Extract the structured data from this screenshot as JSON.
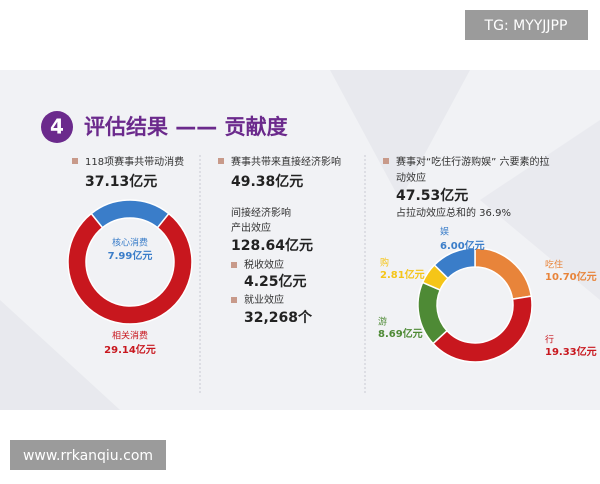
{
  "watermark": "TG: MYYJJPP",
  "site": "www.rrkanqiu.com",
  "header": {
    "number": "4",
    "title": "评估结果 —— 贡献度"
  },
  "panel1": {
    "label": "118项赛事共带动消费",
    "value": "37.13亿元"
  },
  "panel2": {
    "label": "赛事共带来直接经济影响",
    "value": "49.38亿元",
    "indirect": "间接经济影响",
    "items": [
      {
        "label": "产出效应",
        "value": "128.64亿元"
      },
      {
        "label": "税收效应",
        "value": "4.25亿元"
      },
      {
        "label": "就业效应",
        "value": "32,268个"
      }
    ]
  },
  "panel3": {
    "label_line1": "赛事对“吃住行游购娱” 六要素的拉",
    "label_line2": "动效应",
    "value": "47.53亿元",
    "share": "占拉动效应总和的 36.9%"
  },
  "chart_data": [
    {
      "type": "pie",
      "categories": [
        "核心消费",
        "相关消费"
      ],
      "values": [
        7.99,
        29.14
      ],
      "value_labels": [
        "7.99亿元",
        "29.14亿元"
      ],
      "colors": [
        "#3a7dc9",
        "#c8171e"
      ]
    },
    {
      "type": "pie",
      "categories": [
        "吃住",
        "行",
        "游",
        "购",
        "娱"
      ],
      "values": [
        10.7,
        19.33,
        8.69,
        2.81,
        6.0
      ],
      "value_labels": [
        "10.70亿元",
        "19.33亿元",
        "8.69亿元",
        "2.81亿元",
        "6.00亿元"
      ],
      "colors": [
        "#e8843a",
        "#c8171e",
        "#4e8a35",
        "#f5c518",
        "#3a7dc9"
      ]
    }
  ]
}
